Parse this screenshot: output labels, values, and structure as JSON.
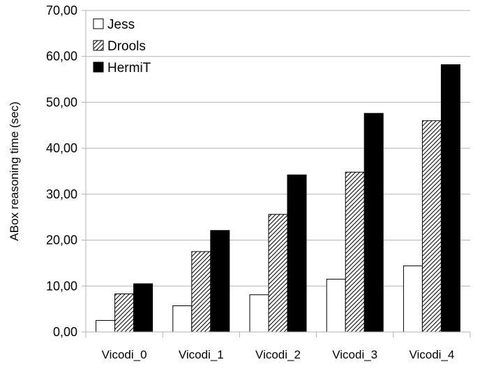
{
  "chart_data": {
    "type": "bar",
    "title": "",
    "xlabel": "",
    "ylabel": "ABox reasoning time (sec)",
    "categories": [
      "Vicodi_0",
      "Vicodi_1",
      "Vicodi_2",
      "Vicodi_3",
      "Vicodi_4"
    ],
    "series": [
      {
        "name": "Jess",
        "values": [
          2.5,
          5.7,
          8.1,
          11.5,
          14.4
        ],
        "fill": "white"
      },
      {
        "name": "Drools",
        "values": [
          8.3,
          17.5,
          25.6,
          34.8,
          46.0
        ],
        "fill": "hatch"
      },
      {
        "name": "HermiT",
        "values": [
          10.5,
          22.1,
          34.2,
          47.6,
          58.2
        ],
        "fill": "black"
      }
    ],
    "ylim": [
      0,
      70
    ],
    "yticks": [
      "0,00",
      "10,00",
      "20,00",
      "30,00",
      "40,00",
      "50,00",
      "60,00",
      "70,00"
    ],
    "grid": true,
    "legend_position": "top-left"
  }
}
